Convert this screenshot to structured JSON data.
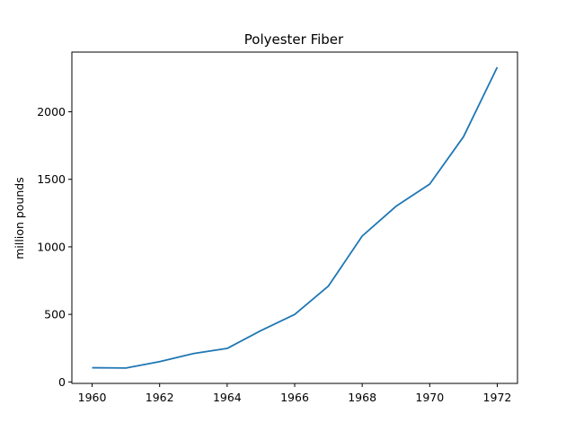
{
  "chart_data": {
    "type": "line",
    "title": "Polyester Fiber",
    "xlabel": "",
    "ylabel": "million pounds",
    "x": [
      1960,
      1961,
      1962,
      1963,
      1964,
      1965,
      1966,
      1967,
      1968,
      1969,
      1970,
      1971,
      1972
    ],
    "series": [
      {
        "values": [
          105,
          103,
          150,
          210,
          248,
          380,
          500,
          710,
          1080,
          1300,
          1465,
          1815,
          2330
        ],
        "color": "#1f77b4"
      }
    ],
    "xlim": [
      1959.4,
      1972.6
    ],
    "ylim": [
      -11,
      2442
    ],
    "xticks": [
      1960,
      1962,
      1964,
      1966,
      1968,
      1970,
      1972
    ],
    "yticks": [
      0,
      500,
      1000,
      1500,
      2000
    ],
    "grid": false,
    "legend": "none"
  }
}
